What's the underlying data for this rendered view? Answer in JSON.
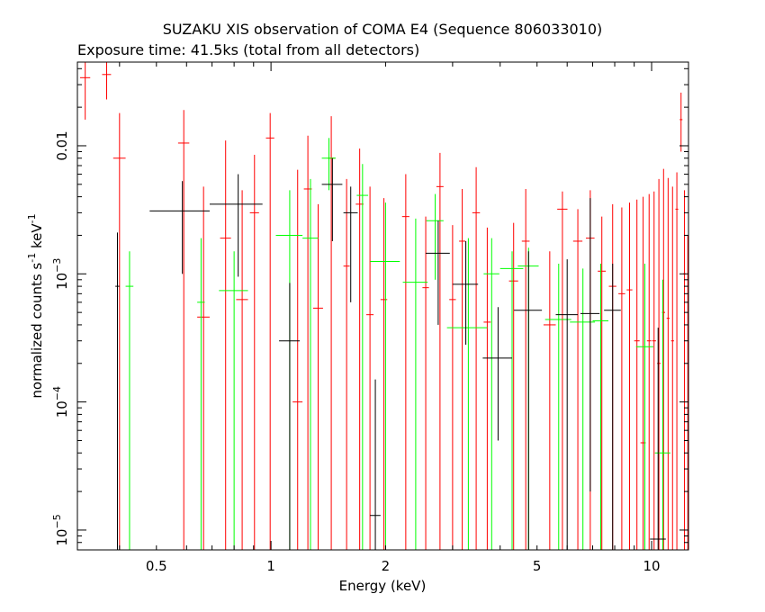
{
  "chart_data": {
    "type": "scatter",
    "title": "SUZAKU XIS observation of COMA E4 (Sequence 806033010)",
    "subtitle": "Exposure time: 41.5ks (total from all detectors)",
    "xlabel": "Energy (keV)",
    "ylabel_parts": [
      "normalized counts s",
      "-1",
      " keV",
      "-1"
    ],
    "x_scale": "log",
    "y_scale": "log",
    "xlim": [
      0.31,
      12.5
    ],
    "ylim": [
      7e-06,
      0.045
    ],
    "grid": false,
    "x_ticks": [
      {
        "value": 0.5,
        "label": "0.5"
      },
      {
        "value": 1,
        "label": "1"
      },
      {
        "value": 2,
        "label": "2"
      },
      {
        "value": 5,
        "label": "5"
      },
      {
        "value": 10,
        "label": "10"
      }
    ],
    "y_ticks": [
      {
        "value": 1e-05,
        "base": "10",
        "exp": "−5"
      },
      {
        "value": 0.0001,
        "base": "10",
        "exp": "−4"
      },
      {
        "value": 0.001,
        "base": "10",
        "exp": "−3"
      },
      {
        "value": 0.01,
        "label": "0.01"
      }
    ],
    "series": [
      {
        "color": "#ff0000",
        "points": [
          {
            "x": 0.325,
            "xl": 0.315,
            "xh": 0.335,
            "y": 0.034,
            "yl": 0.016,
            "yh": 0.045
          },
          {
            "x": 0.37,
            "xl": 0.36,
            "xh": 0.38,
            "y": 0.036,
            "yl": 0.023,
            "yh": 0.045
          },
          {
            "x": 0.4,
            "xl": 0.385,
            "xh": 0.415,
            "y": 0.008,
            "yl": 7e-06,
            "yh": 0.018
          },
          {
            "x": 0.59,
            "xl": 0.57,
            "xh": 0.61,
            "y": 0.0105,
            "yl": 7e-06,
            "yh": 0.019
          },
          {
            "x": 0.665,
            "xl": 0.64,
            "xh": 0.69,
            "y": 0.00046,
            "yl": 7e-06,
            "yh": 0.0048
          },
          {
            "x": 0.76,
            "xl": 0.735,
            "xh": 0.785,
            "y": 0.0019,
            "yl": 7e-06,
            "yh": 0.011
          },
          {
            "x": 0.84,
            "xl": 0.81,
            "xh": 0.87,
            "y": 0.00063,
            "yl": 7e-06,
            "yh": 0.0045
          },
          {
            "x": 0.905,
            "xl": 0.88,
            "xh": 0.93,
            "y": 0.003,
            "yl": 7e-06,
            "yh": 0.0085
          },
          {
            "x": 0.995,
            "xl": 0.97,
            "xh": 1.02,
            "y": 0.0115,
            "yl": 7e-06,
            "yh": 0.018
          },
          {
            "x": 1.175,
            "xl": 1.14,
            "xh": 1.21,
            "y": 0.0001,
            "yl": 7e-06,
            "yh": 0.0065
          },
          {
            "x": 1.25,
            "xl": 1.22,
            "xh": 1.28,
            "y": 0.0046,
            "yl": 7e-06,
            "yh": 0.012
          },
          {
            "x": 1.33,
            "xl": 1.29,
            "xh": 1.37,
            "y": 0.00054,
            "yl": 7e-06,
            "yh": 0.0035
          },
          {
            "x": 1.44,
            "xl": 1.41,
            "xh": 1.47,
            "y": 0.008,
            "yl": 7e-06,
            "yh": 0.017
          },
          {
            "x": 1.58,
            "xl": 1.55,
            "xh": 1.61,
            "y": 0.00115,
            "yl": 7e-06,
            "yh": 0.0055
          },
          {
            "x": 1.71,
            "xl": 1.67,
            "xh": 1.75,
            "y": 0.0035,
            "yl": 7e-06,
            "yh": 0.0095
          },
          {
            "x": 1.82,
            "xl": 1.78,
            "xh": 1.86,
            "y": 0.00048,
            "yl": 7e-06,
            "yh": 0.0048
          },
          {
            "x": 1.98,
            "xl": 1.94,
            "xh": 2.02,
            "y": 0.00063,
            "yl": 7e-06,
            "yh": 0.0039
          },
          {
            "x": 2.26,
            "xl": 2.21,
            "xh": 2.31,
            "y": 0.0028,
            "yl": 7e-06,
            "yh": 0.006
          },
          {
            "x": 2.55,
            "xl": 2.5,
            "xh": 2.6,
            "y": 0.00078,
            "yl": 7e-06,
            "yh": 0.0028
          },
          {
            "x": 2.78,
            "xl": 2.72,
            "xh": 2.84,
            "y": 0.0048,
            "yl": 7e-06,
            "yh": 0.0088
          },
          {
            "x": 3.0,
            "xl": 2.94,
            "xh": 3.06,
            "y": 0.00063,
            "yl": 7e-06,
            "yh": 0.0024
          },
          {
            "x": 3.18,
            "xl": 3.12,
            "xh": 3.24,
            "y": 0.0018,
            "yl": 7e-06,
            "yh": 0.0046
          },
          {
            "x": 3.46,
            "xl": 3.38,
            "xh": 3.54,
            "y": 0.003,
            "yl": 7e-06,
            "yh": 0.0068
          },
          {
            "x": 3.7,
            "xl": 3.62,
            "xh": 3.78,
            "y": 0.00042,
            "yl": 7e-06,
            "yh": 0.0023
          },
          {
            "x": 4.34,
            "xl": 4.22,
            "xh": 4.46,
            "y": 0.00088,
            "yl": 7e-06,
            "yh": 0.0025
          },
          {
            "x": 4.67,
            "xl": 4.56,
            "xh": 4.78,
            "y": 0.0018,
            "yl": 7e-06,
            "yh": 0.0046
          },
          {
            "x": 5.4,
            "xl": 5.2,
            "xh": 5.6,
            "y": 0.0004,
            "yl": 7e-06,
            "yh": 0.0015
          },
          {
            "x": 5.83,
            "xl": 5.65,
            "xh": 6.01,
            "y": 0.0032,
            "yl": 7e-06,
            "yh": 0.0044
          },
          {
            "x": 6.4,
            "xl": 6.22,
            "xh": 6.58,
            "y": 0.0018,
            "yl": 7e-06,
            "yh": 0.0032
          },
          {
            "x": 6.9,
            "xl": 6.72,
            "xh": 7.08,
            "y": 0.0019,
            "yl": 7e-06,
            "yh": 0.0045
          },
          {
            "x": 7.4,
            "xl": 7.22,
            "xh": 7.58,
            "y": 0.00105,
            "yl": 7e-06,
            "yh": 0.0028
          },
          {
            "x": 7.9,
            "xl": 7.72,
            "xh": 8.08,
            "y": 0.0008,
            "yl": 7e-06,
            "yh": 0.0035
          },
          {
            "x": 8.35,
            "xl": 8.18,
            "xh": 8.52,
            "y": 0.0007,
            "yl": 7e-06,
            "yh": 0.0033
          },
          {
            "x": 8.75,
            "xl": 8.6,
            "xh": 8.9,
            "y": 0.00075,
            "yl": 7e-06,
            "yh": 0.0036
          },
          {
            "x": 9.15,
            "xl": 9.0,
            "xh": 9.3,
            "y": 0.0003,
            "yl": 7e-06,
            "yh": 0.0038
          },
          {
            "x": 9.5,
            "xl": 9.35,
            "xh": 9.65,
            "y": 4.8e-05,
            "yl": 7e-06,
            "yh": 0.004
          },
          {
            "x": 9.85,
            "xl": 9.72,
            "xh": 9.98,
            "y": 0.0003,
            "yl": 7e-06,
            "yh": 0.0042
          },
          {
            "x": 10.15,
            "xl": 10.03,
            "xh": 10.27,
            "y": 0.0003,
            "yl": 7e-06,
            "yh": 0.0044
          },
          {
            "x": 10.45,
            "xl": 10.34,
            "xh": 10.56,
            "y": 0.0002,
            "yl": 7e-06,
            "yh": 0.0055
          },
          {
            "x": 10.75,
            "xl": 10.65,
            "xh": 10.85,
            "y": 0.0005,
            "yl": 7e-06,
            "yh": 0.0066
          },
          {
            "x": 11.05,
            "xl": 10.95,
            "xh": 11.15,
            "y": 0.00045,
            "yl": 7e-06,
            "yh": 0.0056
          },
          {
            "x": 11.35,
            "xl": 11.25,
            "xh": 11.45,
            "y": 0.0003,
            "yl": 7e-06,
            "yh": 0.0048
          },
          {
            "x": 11.65,
            "xl": 11.55,
            "xh": 11.75,
            "y": 0.0032,
            "yl": 7e-06,
            "yh": 0.0062
          },
          {
            "x": 11.95,
            "xl": 11.85,
            "xh": 12.05,
            "y": 0.016,
            "yl": 0.009,
            "yh": 0.026
          },
          {
            "x": 12.2,
            "xl": 12.1,
            "xh": 12.3,
            "y": 0.001,
            "yl": 7e-06,
            "yh": 0.0045
          },
          {
            "x": 12.45,
            "xl": 12.4,
            "xh": 12.5,
            "y": 0.0006,
            "yl": 7e-06,
            "yh": 0.002
          }
        ]
      },
      {
        "color": "#00ff00",
        "points": [
          {
            "x": 0.425,
            "xl": 0.415,
            "xh": 0.435,
            "y": 0.0008,
            "yl": 7e-06,
            "yh": 0.0015
          },
          {
            "x": 0.655,
            "xl": 0.64,
            "xh": 0.67,
            "y": 0.0006,
            "yl": 7e-06,
            "yh": 0.0019
          },
          {
            "x": 0.8,
            "xl": 0.73,
            "xh": 0.87,
            "y": 0.00074,
            "yl": 7e-06,
            "yh": 0.0015
          },
          {
            "x": 1.12,
            "xl": 1.03,
            "xh": 1.21,
            "y": 0.002,
            "yl": 7e-06,
            "yh": 0.0045
          },
          {
            "x": 1.27,
            "xl": 1.21,
            "xh": 1.33,
            "y": 0.0019,
            "yl": 7e-06,
            "yh": 0.0055
          },
          {
            "x": 1.42,
            "xl": 1.36,
            "xh": 1.48,
            "y": 0.008,
            "yl": 0.0045,
            "yh": 0.0115
          },
          {
            "x": 1.74,
            "xl": 1.68,
            "xh": 1.8,
            "y": 0.0041,
            "yl": 7e-06,
            "yh": 0.0072
          },
          {
            "x": 2.0,
            "xl": 1.82,
            "xh": 2.18,
            "y": 0.00125,
            "yl": 7e-06,
            "yh": 0.0036
          },
          {
            "x": 2.4,
            "xl": 2.22,
            "xh": 2.58,
            "y": 0.00086,
            "yl": 7e-06,
            "yh": 0.0027
          },
          {
            "x": 2.7,
            "xl": 2.56,
            "xh": 2.84,
            "y": 0.0026,
            "yl": 0.0009,
            "yh": 0.0042
          },
          {
            "x": 3.3,
            "xl": 2.9,
            "xh": 3.7,
            "y": 0.00038,
            "yl": 7e-06,
            "yh": 0.0019
          },
          {
            "x": 3.8,
            "xl": 3.62,
            "xh": 3.98,
            "y": 0.001,
            "yl": 7e-06,
            "yh": 0.0019
          },
          {
            "x": 4.3,
            "xl": 4.0,
            "xh": 4.6,
            "y": 0.0011,
            "yl": 7e-06,
            "yh": 0.0015
          },
          {
            "x": 4.75,
            "xl": 4.45,
            "xh": 5.05,
            "y": 0.00115,
            "yl": 7e-06,
            "yh": 0.0016
          },
          {
            "x": 5.7,
            "xl": 5.25,
            "xh": 6.15,
            "y": 0.00044,
            "yl": 7e-06,
            "yh": 0.0012
          },
          {
            "x": 6.6,
            "xl": 6.1,
            "xh": 7.1,
            "y": 0.00042,
            "yl": 7e-06,
            "yh": 0.0011
          },
          {
            "x": 7.35,
            "xl": 7.0,
            "xh": 7.7,
            "y": 0.00043,
            "yl": 7e-06,
            "yh": 0.0012
          },
          {
            "x": 9.6,
            "xl": 9.1,
            "xh": 10.1,
            "y": 0.00027,
            "yl": 7e-06,
            "yh": 0.0012
          },
          {
            "x": 10.7,
            "xl": 10.2,
            "xh": 11.2,
            "y": 4e-05,
            "yl": 7e-06,
            "yh": 0.0009
          }
        ]
      },
      {
        "color": "#000000",
        "points": [
          {
            "x": 0.395,
            "xl": 0.39,
            "xh": 0.4,
            "y": 0.0008,
            "yl": 7e-06,
            "yh": 0.0021
          },
          {
            "x": 0.585,
            "xl": 0.48,
            "xh": 0.69,
            "y": 0.0031,
            "yl": 0.001,
            "yh": 0.0053
          },
          {
            "x": 0.82,
            "xl": 0.69,
            "xh": 0.95,
            "y": 0.0035,
            "yl": 0.00095,
            "yh": 0.006
          },
          {
            "x": 1.12,
            "xl": 1.05,
            "xh": 1.19,
            "y": 0.0003,
            "yl": 7e-06,
            "yh": 0.00085
          },
          {
            "x": 1.45,
            "xl": 1.36,
            "xh": 1.54,
            "y": 0.005,
            "yl": 0.0018,
            "yh": 0.008
          },
          {
            "x": 1.62,
            "xl": 1.55,
            "xh": 1.69,
            "y": 0.003,
            "yl": 0.0006,
            "yh": 0.0048
          },
          {
            "x": 1.88,
            "xl": 1.82,
            "xh": 1.94,
            "y": 1.3e-05,
            "yl": 7e-06,
            "yh": 0.00015
          },
          {
            "x": 2.75,
            "xl": 2.55,
            "xh": 2.95,
            "y": 0.00145,
            "yl": 0.0004,
            "yh": 0.0026
          },
          {
            "x": 3.25,
            "xl": 3.0,
            "xh": 3.5,
            "y": 0.00083,
            "yl": 0.00028,
            "yh": 0.0018
          },
          {
            "x": 3.95,
            "xl": 3.6,
            "xh": 4.3,
            "y": 0.00022,
            "yl": 5e-05,
            "yh": 0.00055
          },
          {
            "x": 4.75,
            "xl": 4.35,
            "xh": 5.15,
            "y": 0.00052,
            "yl": 7e-06,
            "yh": 0.0015
          },
          {
            "x": 6.0,
            "xl": 5.6,
            "xh": 6.4,
            "y": 0.00048,
            "yl": 7e-06,
            "yh": 0.0013
          },
          {
            "x": 6.9,
            "xl": 6.5,
            "xh": 7.3,
            "y": 0.00049,
            "yl": 2e-05,
            "yh": 0.0039
          },
          {
            "x": 7.9,
            "xl": 7.5,
            "xh": 8.3,
            "y": 0.00052,
            "yl": 7e-06,
            "yh": 0.0012
          },
          {
            "x": 10.4,
            "xl": 9.9,
            "xh": 10.9,
            "y": 8.5e-06,
            "yl": 7e-06,
            "yh": 0.00038
          }
        ]
      }
    ]
  }
}
